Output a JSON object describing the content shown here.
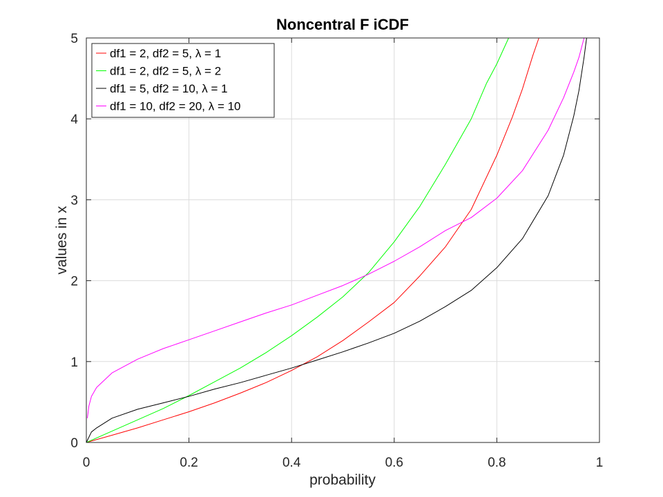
{
  "chart_data": {
    "type": "line",
    "title": "Noncentral F iCDF",
    "xlabel": "probability",
    "ylabel": "values in x",
    "xlim": [
      0,
      1
    ],
    "ylim": [
      0,
      5
    ],
    "xticks": [
      0,
      0.2,
      0.4,
      0.6,
      0.8,
      1
    ],
    "xtick_labels": [
      "0",
      "0.2",
      "0.4",
      "0.6",
      "0.8",
      "1"
    ],
    "yticks": [
      0,
      1,
      2,
      3,
      4,
      5
    ],
    "ytick_labels": [
      "0",
      "1",
      "2",
      "3",
      "4",
      "5"
    ],
    "grid": true,
    "legend_position": "top-left",
    "series": [
      {
        "name": "df1 = 2, df2 = 5, λ = 1",
        "color": "#ff0000",
        "x": [
          0,
          0.05,
          0.1,
          0.15,
          0.2,
          0.25,
          0.3,
          0.35,
          0.4,
          0.45,
          0.5,
          0.55,
          0.6,
          0.65,
          0.7,
          0.75,
          0.8,
          0.83,
          0.85,
          0.87,
          0.882
        ],
        "y": [
          0,
          0.09,
          0.18,
          0.28,
          0.38,
          0.49,
          0.61,
          0.74,
          0.89,
          1.06,
          1.26,
          1.49,
          1.73,
          2.06,
          2.42,
          2.88,
          3.55,
          4.02,
          4.37,
          4.78,
          5.0
        ]
      },
      {
        "name": "df1 = 2, df2 = 5, λ = 2",
        "color": "#00ff00",
        "x": [
          0,
          0.05,
          0.1,
          0.15,
          0.2,
          0.25,
          0.3,
          0.35,
          0.4,
          0.45,
          0.5,
          0.55,
          0.6,
          0.65,
          0.7,
          0.75,
          0.78,
          0.8,
          0.823
        ],
        "y": [
          0,
          0.14,
          0.28,
          0.42,
          0.58,
          0.75,
          0.92,
          1.11,
          1.32,
          1.55,
          1.8,
          2.1,
          2.48,
          2.92,
          3.44,
          4.0,
          4.44,
          4.68,
          5.0
        ]
      },
      {
        "name": "df1 = 5, df2 = 10, λ = 1",
        "color": "#000000",
        "x": [
          0,
          0.01,
          0.02,
          0.05,
          0.1,
          0.15,
          0.2,
          0.25,
          0.3,
          0.35,
          0.4,
          0.45,
          0.5,
          0.55,
          0.6,
          0.65,
          0.7,
          0.75,
          0.8,
          0.85,
          0.9,
          0.93,
          0.95,
          0.96,
          0.97,
          0.975
        ],
        "y": [
          0,
          0.13,
          0.18,
          0.3,
          0.41,
          0.49,
          0.57,
          0.66,
          0.74,
          0.83,
          0.92,
          1.02,
          1.12,
          1.23,
          1.35,
          1.5,
          1.68,
          1.88,
          2.16,
          2.52,
          3.05,
          3.55,
          4.04,
          4.35,
          4.76,
          5.0
        ]
      },
      {
        "name": "df1 = 10, df2 = 20, λ = 10",
        "color": "#ff00ff",
        "x": [
          0.002,
          0.005,
          0.01,
          0.02,
          0.05,
          0.1,
          0.15,
          0.2,
          0.25,
          0.3,
          0.35,
          0.4,
          0.45,
          0.5,
          0.55,
          0.6,
          0.65,
          0.7,
          0.75,
          0.8,
          0.85,
          0.9,
          0.93,
          0.95,
          0.96,
          0.97
        ],
        "y": [
          0.3,
          0.45,
          0.57,
          0.68,
          0.86,
          1.03,
          1.16,
          1.27,
          1.38,
          1.49,
          1.6,
          1.7,
          1.82,
          1.94,
          2.08,
          2.24,
          2.42,
          2.62,
          2.78,
          3.02,
          3.36,
          3.86,
          4.26,
          4.58,
          4.76,
          5.0
        ]
      }
    ]
  }
}
